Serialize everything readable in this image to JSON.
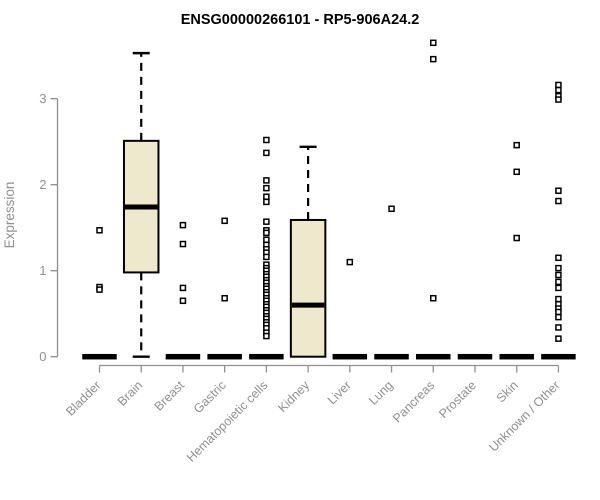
{
  "title": "ENSG00000266101 - RP5-906A24.2",
  "colors": {
    "background": "#ffffff",
    "box_fill": "#EEE8CD",
    "box_border": "#000000",
    "median": "#000000",
    "whisker": "#000000",
    "outlier_fill": "#ffffff",
    "outlier_border": "#000000",
    "axis": "#8f8f8f",
    "axis_label": "#8f8f8f",
    "title": "#000000"
  },
  "chart_data": {
    "type": "boxplot",
    "title": "ENSG00000266101 - RP5-906A24.2",
    "xlabel": "",
    "ylabel": "Expression",
    "yticks": [
      0,
      1,
      2,
      3
    ],
    "ylim": [
      0,
      3.72
    ],
    "grid": false,
    "legend": "none",
    "categories": [
      "Bladder",
      "Brain",
      "Breast",
      "Gastric",
      "Hematopoietic cells",
      "Kidney",
      "Liver",
      "Lung",
      "Pancreas",
      "Prostate",
      "Skin",
      "Unknown / Other"
    ],
    "boxes": [
      {
        "category": "Bladder",
        "q1": 0,
        "median": 0,
        "q3": 0,
        "whisker_low": 0,
        "whisker_high": 0,
        "outliers": [
          1.47,
          0.81,
          0.78
        ]
      },
      {
        "category": "Brain",
        "q1": 0.98,
        "median": 1.74,
        "q3": 2.51,
        "whisker_low": 0,
        "whisker_high": 3.53,
        "outliers": []
      },
      {
        "category": "Breast",
        "q1": 0,
        "median": 0,
        "q3": 0,
        "whisker_low": 0,
        "whisker_high": 0,
        "outliers": [
          1.53,
          1.31,
          0.8,
          0.65
        ]
      },
      {
        "category": "Gastric",
        "q1": 0,
        "median": 0,
        "q3": 0,
        "whisker_low": 0,
        "whisker_high": 0,
        "outliers": [
          1.58,
          0.68
        ]
      },
      {
        "category": "Hematopoietic cells",
        "q1": 0,
        "median": 0,
        "q3": 0,
        "whisker_low": 0,
        "whisker_high": 0,
        "outliers": [
          2.52,
          2.37,
          2.05,
          1.96,
          1.86,
          1.8,
          1.57,
          1.47,
          1.44,
          1.36,
          1.3,
          1.25,
          1.21,
          1.16,
          1.07,
          1.03,
          1.0,
          0.96,
          0.93,
          0.89,
          0.86,
          0.82,
          0.79,
          0.75,
          0.72,
          0.68,
          0.65,
          0.61,
          0.58,
          0.54,
          0.51,
          0.47,
          0.44,
          0.4,
          0.37,
          0.33,
          0.28,
          0.24
        ]
      },
      {
        "category": "Kidney",
        "q1": 0,
        "median": 0.6,
        "q3": 1.59,
        "whisker_low": 0,
        "whisker_high": 2.44,
        "outliers": []
      },
      {
        "category": "Liver",
        "q1": 0,
        "median": 0,
        "q3": 0,
        "whisker_low": 0,
        "whisker_high": 0,
        "outliers": [
          1.1
        ]
      },
      {
        "category": "Lung",
        "q1": 0,
        "median": 0,
        "q3": 0,
        "whisker_low": 0,
        "whisker_high": 0,
        "outliers": [
          1.72
        ]
      },
      {
        "category": "Pancreas",
        "q1": 0,
        "median": 0,
        "q3": 0,
        "whisker_low": 0,
        "whisker_high": 0,
        "outliers": [
          3.65,
          3.46,
          0.68
        ]
      },
      {
        "category": "Prostate",
        "q1": 0,
        "median": 0,
        "q3": 0,
        "whisker_low": 0,
        "whisker_high": 0,
        "outliers": []
      },
      {
        "category": "Skin",
        "q1": 0,
        "median": 0,
        "q3": 0,
        "whisker_low": 0,
        "whisker_high": 0,
        "outliers": [
          2.46,
          2.15,
          1.38
        ]
      },
      {
        "category": "Unknown / Other",
        "q1": 0,
        "median": 0,
        "q3": 0,
        "whisker_low": 0,
        "whisker_high": 0,
        "outliers": [
          3.16,
          3.1,
          3.03,
          2.99,
          1.93,
          1.81,
          1.15,
          1.03,
          0.95,
          0.87,
          0.8,
          0.67,
          0.61,
          0.56,
          0.52,
          0.46,
          0.34,
          0.21
        ]
      }
    ]
  }
}
